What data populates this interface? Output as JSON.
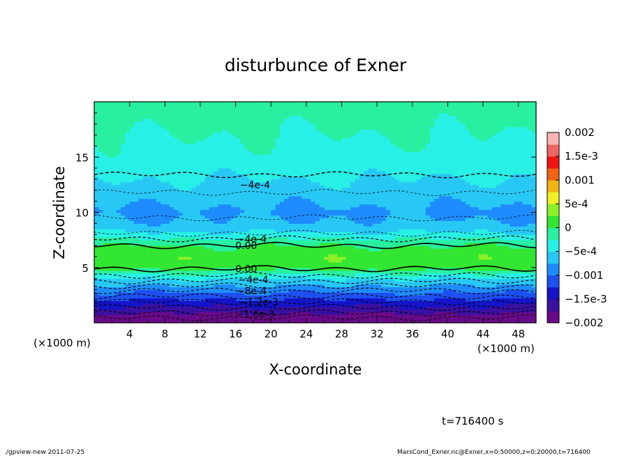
{
  "chart_data": {
    "type": "heatmap",
    "title": "disturbunce of Exner",
    "xlabel": "X-coordinate",
    "ylabel": "Z-coordinate",
    "x_unit": "(×1000 m)",
    "y_unit": "(×1000 m)",
    "xlim": [
      0,
      50
    ],
    "ylim": [
      0,
      20
    ],
    "x_ticks": [
      4,
      8,
      12,
      16,
      20,
      24,
      28,
      32,
      36,
      40,
      44,
      48
    ],
    "y_ticks": [
      5,
      10,
      15
    ],
    "colorbar": {
      "range": [
        -0.002,
        0.002
      ],
      "labels": [
        {
          "text": "0.002",
          "value": 0.002
        },
        {
          "text": "1.5e-3",
          "value": 0.0015
        },
        {
          "text": "0.001",
          "value": 0.001
        },
        {
          "text": "5e-4",
          "value": 0.0005
        },
        {
          "text": "0",
          "value": 0
        },
        {
          "text": "−5e-4",
          "value": -0.0005
        },
        {
          "text": "−0.001",
          "value": -0.001
        },
        {
          "text": "−1.5e-3",
          "value": -0.0015
        },
        {
          "text": "−0.002",
          "value": -0.002
        }
      ],
      "colors": [
        "#6a0a8a",
        "#3a10a0",
        "#1414c8",
        "#1e50f0",
        "#1e8cff",
        "#28c8f5",
        "#28f0e6",
        "#28f0a0",
        "#32e632",
        "#8cf028",
        "#f0f028",
        "#f0b414",
        "#f06414",
        "#f01414",
        "#f06464",
        "#fab4b4"
      ]
    },
    "profile": {
      "z": [
        0,
        0.5,
        1,
        1.5,
        2,
        2.5,
        3,
        3.5,
        4,
        4.5,
        5,
        5.5,
        6,
        6.5,
        7,
        7.5,
        8,
        8.5,
        9,
        9.5,
        10,
        11,
        12,
        13,
        14,
        15,
        16,
        17,
        18,
        19,
        20
      ],
      "value": [
        -0.0021,
        -0.0019,
        -0.0017,
        -0.0015,
        -0.0013,
        -0.0011,
        -0.0009,
        -0.0007,
        -0.0005,
        -0.0002,
        0.0001,
        0.00015,
        0.00018,
        0.0001,
        0.0,
        -0.0002,
        -0.0004,
        -0.0006,
        -0.0007,
        -0.00075,
        -0.0008,
        -0.0007,
        -0.0006,
        -0.0005,
        -0.0004,
        -0.00035,
        -0.0003,
        -0.00025,
        -0.0002,
        -0.00015,
        -0.0001
      ]
    },
    "contour_labels": [
      {
        "text": "−4e-4",
        "x": 18.2,
        "z": 12.5
      },
      {
        "text": "−4e-4",
        "x": 17.8,
        "z": 7.6
      },
      {
        "text": "0.00",
        "x": 17.2,
        "z": 7.0
      },
      {
        "text": "0.00",
        "x": 17.2,
        "z": 4.9
      },
      {
        "text": "−4e-4",
        "x": 18.0,
        "z": 3.9
      },
      {
        "text": "−8e-4",
        "x": 17.8,
        "z": 2.9
      },
      {
        "text": "−1.2e-3",
        "x": 18.6,
        "z": 1.9
      },
      {
        "text": "−1.6e-3",
        "x": 18.2,
        "z": 0.8
      }
    ],
    "time_label": "t=716400 s",
    "footer_left": "./gpview-new   2011-07-25",
    "footer_right": "MarsCond_Exner.nc@Exner,x=0:50000,z=0:20000,t=716400"
  }
}
